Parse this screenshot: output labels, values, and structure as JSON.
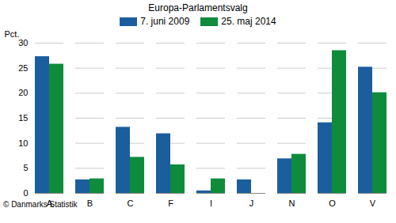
{
  "chart_data": {
    "type": "bar",
    "title": "Europa-Parlamentsvalg",
    "y_label": "Pct.",
    "caption": "© Danmarks Statistik",
    "categories": [
      "A",
      "B",
      "C",
      "F",
      "I",
      "J",
      "N",
      "O",
      "V"
    ],
    "series": [
      {
        "name": "7. juni 2009",
        "color": "#1b5e9e",
        "values": [
          27.3,
          2.7,
          13.2,
          11.9,
          0.5,
          2.7,
          6.9,
          14.1,
          25.2
        ]
      },
      {
        "name": "25. maj 2014",
        "color": "#0e8c3c",
        "values": [
          25.8,
          2.9,
          7.2,
          5.7,
          2.9,
          null,
          7.8,
          28.5,
          20.1
        ]
      }
    ],
    "ylim": [
      0,
      30
    ],
    "yticks": [
      0,
      5,
      10,
      15,
      20,
      25,
      30
    ],
    "grid": true
  }
}
